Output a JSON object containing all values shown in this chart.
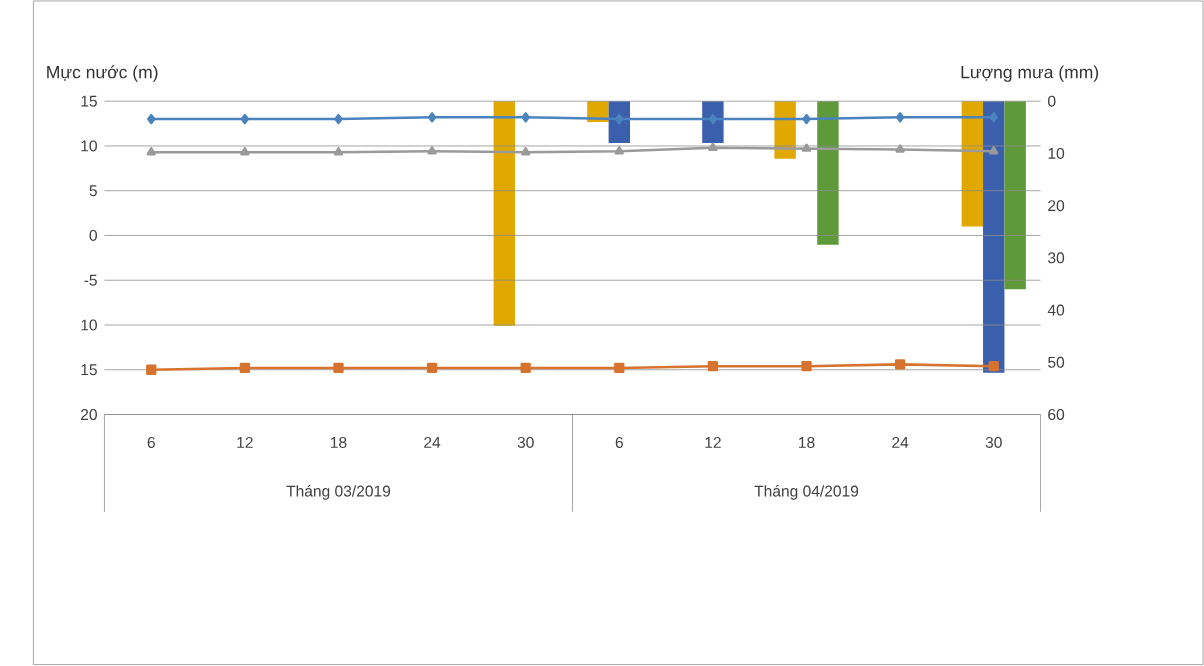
{
  "chart_data": {
    "type": "line",
    "ylabel": "Mực nước (m)",
    "y2label": "Lượng mưa (mm)",
    "categories": [
      "6",
      "12",
      "18",
      "24",
      "30",
      "6",
      "12",
      "18",
      "24",
      "30"
    ],
    "annotations": [
      "Tháng 03/2019",
      "Tháng 04/2019"
    ],
    "ylim": [
      -20,
      15
    ],
    "yticks": [
      15,
      10,
      5,
      0,
      -5,
      {
        "value": -10,
        "label": "10"
      },
      {
        "value": -15,
        "label": "15"
      },
      {
        "value": -20,
        "label": "20"
      }
    ],
    "y2lim": [
      60,
      0
    ],
    "y2ticks": [
      0,
      10,
      20,
      30,
      40,
      50,
      60
    ],
    "grid": "y",
    "series": [
      {
        "type": "bar",
        "axis": "y2",
        "color": "#e0a800",
        "values": [
          null,
          null,
          null,
          null,
          43,
          4,
          null,
          11,
          null,
          24
        ]
      },
      {
        "type": "bar",
        "axis": "y2",
        "color": "#3a5fad",
        "values": [
          null,
          null,
          null,
          null,
          null,
          8,
          8,
          null,
          null,
          52
        ]
      },
      {
        "type": "bar",
        "axis": "y2",
        "color": "#5f9a3a",
        "values": [
          null,
          null,
          null,
          null,
          null,
          null,
          null,
          27.5,
          null,
          36
        ]
      },
      {
        "marker": "diamond",
        "color": "#4a83bd",
        "values": [
          13,
          13,
          13,
          13.2,
          13.2,
          13,
          13,
          13,
          13.2,
          13.2
        ]
      },
      {
        "marker": "square",
        "color": "#d6732f",
        "values": [
          -15,
          -14.8,
          -14.8,
          -14.8,
          -14.8,
          -14.8,
          -14.6,
          -14.6,
          -14.4,
          -14.6
        ]
      },
      {
        "marker": "triangle",
        "color": "#9a9a9a",
        "values": [
          9.3,
          9.3,
          9.3,
          9.4,
          9.3,
          9.4,
          9.8,
          9.7,
          9.6,
          9.4
        ]
      }
    ]
  }
}
